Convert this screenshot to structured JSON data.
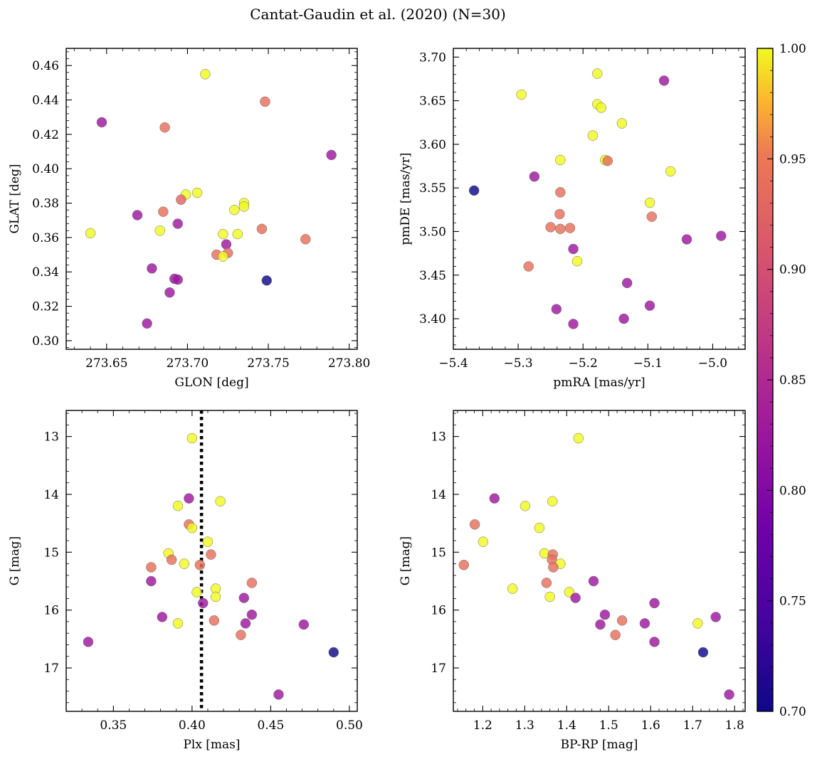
{
  "figure_title": "Cantat-Gaudin et al. (2020) (N=30)",
  "colorbar": {
    "min": 0.7,
    "max": 1.0,
    "ticks": [
      "0.70",
      "0.75",
      "0.80",
      "0.85",
      "0.90",
      "0.95",
      "1.00"
    ],
    "colormap": "plasma"
  },
  "chart_data": [
    {
      "type": "scatter",
      "xlabel": "GLON [deg]",
      "ylabel": "GLAT [deg]",
      "xlim": [
        273.625,
        273.805
      ],
      "ylim": [
        0.295,
        0.47
      ],
      "xticks": [
        "273.65",
        "273.70",
        "273.75",
        "273.80"
      ],
      "yticks": [
        "0.30",
        "0.32",
        "0.34",
        "0.36",
        "0.38",
        "0.40",
        "0.42",
        "0.44",
        "0.46"
      ],
      "points": [
        {
          "x": 273.711,
          "y": 0.455,
          "c": 1.0
        },
        {
          "x": 273.748,
          "y": 0.439,
          "c": 0.89
        },
        {
          "x": 273.647,
          "y": 0.427,
          "c": 0.8
        },
        {
          "x": 273.686,
          "y": 0.424,
          "c": 0.89
        },
        {
          "x": 273.789,
          "y": 0.408,
          "c": 0.8
        },
        {
          "x": 273.706,
          "y": 0.386,
          "c": 1.0
        },
        {
          "x": 273.699,
          "y": 0.385,
          "c": 1.0
        },
        {
          "x": 273.696,
          "y": 0.382,
          "c": 0.88
        },
        {
          "x": 273.735,
          "y": 0.38,
          "c": 1.0
        },
        {
          "x": 273.735,
          "y": 0.378,
          "c": 1.0
        },
        {
          "x": 273.729,
          "y": 0.376,
          "c": 1.0
        },
        {
          "x": 273.685,
          "y": 0.375,
          "c": 0.89
        },
        {
          "x": 273.669,
          "y": 0.373,
          "c": 0.8
        },
        {
          "x": 273.694,
          "y": 0.368,
          "c": 0.8
        },
        {
          "x": 273.746,
          "y": 0.365,
          "c": 0.89
        },
        {
          "x": 273.683,
          "y": 0.364,
          "c": 1.0
        },
        {
          "x": 273.64,
          "y": 0.3625,
          "c": 1.0
        },
        {
          "x": 273.722,
          "y": 0.362,
          "c": 1.0
        },
        {
          "x": 273.731,
          "y": 0.362,
          "c": 1.0
        },
        {
          "x": 273.773,
          "y": 0.359,
          "c": 0.89
        },
        {
          "x": 273.724,
          "y": 0.356,
          "c": 0.8
        },
        {
          "x": 273.725,
          "y": 0.351,
          "c": 0.89
        },
        {
          "x": 273.718,
          "y": 0.35,
          "c": 0.89
        },
        {
          "x": 273.722,
          "y": 0.349,
          "c": 1.0
        },
        {
          "x": 273.678,
          "y": 0.342,
          "c": 0.8
        },
        {
          "x": 273.692,
          "y": 0.336,
          "c": 0.8
        },
        {
          "x": 273.694,
          "y": 0.3355,
          "c": 0.8
        },
        {
          "x": 273.749,
          "y": 0.335,
          "c": 0.7
        },
        {
          "x": 273.689,
          "y": 0.328,
          "c": 0.8
        },
        {
          "x": 273.675,
          "y": 0.31,
          "c": 0.8
        }
      ]
    },
    {
      "type": "scatter",
      "xlabel": "pmRA [mas/yr]",
      "ylabel": "pmDE [mas/yr]",
      "xlim": [
        -5.4,
        -4.95
      ],
      "ylim": [
        3.365,
        3.71
      ],
      "xticks": [
        "−5.4",
        "−5.3",
        "−5.2",
        "−5.1",
        "−5.0"
      ],
      "yticks": [
        "3.40",
        "3.45",
        "3.50",
        "3.55",
        "3.60",
        "3.65",
        "3.70"
      ],
      "points": [
        {
          "x": -5.178,
          "y": 3.681,
          "c": 1.0
        },
        {
          "x": -5.075,
          "y": 3.673,
          "c": 0.8
        },
        {
          "x": -5.295,
          "y": 3.657,
          "c": 1.0
        },
        {
          "x": -5.178,
          "y": 3.646,
          "c": 1.0
        },
        {
          "x": -5.172,
          "y": 3.642,
          "c": 1.0
        },
        {
          "x": -5.14,
          "y": 3.624,
          "c": 1.0
        },
        {
          "x": -5.185,
          "y": 3.61,
          "c": 1.0
        },
        {
          "x": -5.235,
          "y": 3.582,
          "c": 1.0
        },
        {
          "x": -5.166,
          "y": 3.582,
          "c": 1.0
        },
        {
          "x": -5.162,
          "y": 3.581,
          "c": 0.89
        },
        {
          "x": -5.065,
          "y": 3.569,
          "c": 1.0
        },
        {
          "x": -5.275,
          "y": 3.563,
          "c": 0.8
        },
        {
          "x": -5.368,
          "y": 3.547,
          "c": 0.7
        },
        {
          "x": -5.235,
          "y": 3.545,
          "c": 0.89
        },
        {
          "x": -5.097,
          "y": 3.533,
          "c": 1.0
        },
        {
          "x": -5.236,
          "y": 3.52,
          "c": 0.89
        },
        {
          "x": -5.094,
          "y": 3.517,
          "c": 0.89
        },
        {
          "x": -5.25,
          "y": 3.505,
          "c": 0.89
        },
        {
          "x": -5.235,
          "y": 3.503,
          "c": 0.89
        },
        {
          "x": -5.22,
          "y": 3.504,
          "c": 0.89
        },
        {
          "x": -4.987,
          "y": 3.495,
          "c": 0.8
        },
        {
          "x": -5.04,
          "y": 3.491,
          "c": 0.8
        },
        {
          "x": -5.215,
          "y": 3.48,
          "c": 0.8
        },
        {
          "x": -5.209,
          "y": 3.466,
          "c": 1.0
        },
        {
          "x": -5.284,
          "y": 3.46,
          "c": 0.89
        },
        {
          "x": -5.132,
          "y": 3.441,
          "c": 0.8
        },
        {
          "x": -5.097,
          "y": 3.415,
          "c": 0.8
        },
        {
          "x": -5.241,
          "y": 3.411,
          "c": 0.8
        },
        {
          "x": -5.137,
          "y": 3.4,
          "c": 0.8
        },
        {
          "x": -5.215,
          "y": 3.394,
          "c": 0.8
        }
      ]
    },
    {
      "type": "scatter",
      "xlabel": "Plx [mas]",
      "ylabel": "G [mag]",
      "xlim": [
        0.32,
        0.505
      ],
      "ylim": [
        17.75,
        12.55
      ],
      "yinverted": true,
      "xticks": [
        "0.35",
        "0.40",
        "0.45",
        "0.50"
      ],
      "yticks": [
        "13",
        "14",
        "15",
        "16",
        "17"
      ],
      "vline": {
        "x": 0.406,
        "style": "dotted",
        "color": "#000000"
      },
      "points": [
        {
          "x": 0.4,
          "y": 13.03,
          "c": 1.0
        },
        {
          "x": 0.398,
          "y": 14.07,
          "c": 0.8
        },
        {
          "x": 0.418,
          "y": 14.12,
          "c": 1.0
        },
        {
          "x": 0.391,
          "y": 14.2,
          "c": 1.0
        },
        {
          "x": 0.398,
          "y": 14.52,
          "c": 0.89
        },
        {
          "x": 0.4,
          "y": 14.58,
          "c": 1.0
        },
        {
          "x": 0.41,
          "y": 14.82,
          "c": 1.0
        },
        {
          "x": 0.385,
          "y": 15.02,
          "c": 1.0
        },
        {
          "x": 0.412,
          "y": 15.04,
          "c": 0.89
        },
        {
          "x": 0.387,
          "y": 15.13,
          "c": 0.89
        },
        {
          "x": 0.395,
          "y": 15.2,
          "c": 1.0
        },
        {
          "x": 0.405,
          "y": 15.22,
          "c": 0.89
        },
        {
          "x": 0.374,
          "y": 15.26,
          "c": 0.89
        },
        {
          "x": 0.374,
          "y": 15.5,
          "c": 0.8
        },
        {
          "x": 0.438,
          "y": 15.53,
          "c": 0.89
        },
        {
          "x": 0.415,
          "y": 15.63,
          "c": 1.0
        },
        {
          "x": 0.403,
          "y": 15.69,
          "c": 1.0
        },
        {
          "x": 0.415,
          "y": 15.77,
          "c": 1.0
        },
        {
          "x": 0.433,
          "y": 15.79,
          "c": 0.8
        },
        {
          "x": 0.407,
          "y": 15.88,
          "c": 0.8
        },
        {
          "x": 0.438,
          "y": 16.08,
          "c": 0.8
        },
        {
          "x": 0.381,
          "y": 16.12,
          "c": 0.8
        },
        {
          "x": 0.414,
          "y": 16.18,
          "c": 0.89
        },
        {
          "x": 0.391,
          "y": 16.23,
          "c": 1.0
        },
        {
          "x": 0.434,
          "y": 16.23,
          "c": 0.8
        },
        {
          "x": 0.471,
          "y": 16.25,
          "c": 0.8
        },
        {
          "x": 0.431,
          "y": 16.43,
          "c": 0.89
        },
        {
          "x": 0.334,
          "y": 16.55,
          "c": 0.8
        },
        {
          "x": 0.49,
          "y": 16.73,
          "c": 0.7
        },
        {
          "x": 0.455,
          "y": 17.46,
          "c": 0.8
        }
      ]
    },
    {
      "type": "scatter",
      "xlabel": "BP-RP [mag]",
      "ylabel": "G [mag]",
      "xlim": [
        1.13,
        1.825
      ],
      "ylim": [
        17.75,
        12.55
      ],
      "yinverted": true,
      "xticks": [
        "1.2",
        "1.3",
        "1.4",
        "1.5",
        "1.6",
        "1.7",
        "1.8"
      ],
      "yticks": [
        "13",
        "14",
        "15",
        "16",
        "17"
      ],
      "points": [
        {
          "x": 1.428,
          "y": 13.03,
          "c": 1.0
        },
        {
          "x": 1.228,
          "y": 14.07,
          "c": 0.8
        },
        {
          "x": 1.366,
          "y": 14.12,
          "c": 1.0
        },
        {
          "x": 1.301,
          "y": 14.2,
          "c": 1.0
        },
        {
          "x": 1.181,
          "y": 14.52,
          "c": 0.89
        },
        {
          "x": 1.335,
          "y": 14.58,
          "c": 1.0
        },
        {
          "x": 1.201,
          "y": 14.82,
          "c": 1.0
        },
        {
          "x": 1.347,
          "y": 15.02,
          "c": 1.0
        },
        {
          "x": 1.367,
          "y": 15.04,
          "c": 0.89
        },
        {
          "x": 1.365,
          "y": 15.13,
          "c": 0.89
        },
        {
          "x": 1.385,
          "y": 15.2,
          "c": 1.0
        },
        {
          "x": 1.155,
          "y": 15.22,
          "c": 0.89
        },
        {
          "x": 1.368,
          "y": 15.26,
          "c": 0.89
        },
        {
          "x": 1.464,
          "y": 15.5,
          "c": 0.8
        },
        {
          "x": 1.352,
          "y": 15.53,
          "c": 0.89
        },
        {
          "x": 1.271,
          "y": 15.63,
          "c": 1.0
        },
        {
          "x": 1.406,
          "y": 15.69,
          "c": 1.0
        },
        {
          "x": 1.36,
          "y": 15.77,
          "c": 1.0
        },
        {
          "x": 1.421,
          "y": 15.79,
          "c": 0.8
        },
        {
          "x": 1.609,
          "y": 15.88,
          "c": 0.8
        },
        {
          "x": 1.491,
          "y": 16.08,
          "c": 0.8
        },
        {
          "x": 1.755,
          "y": 16.12,
          "c": 0.8
        },
        {
          "x": 1.532,
          "y": 16.18,
          "c": 0.89
        },
        {
          "x": 1.586,
          "y": 16.23,
          "c": 0.8
        },
        {
          "x": 1.712,
          "y": 16.23,
          "c": 1.0
        },
        {
          "x": 1.48,
          "y": 16.25,
          "c": 0.8
        },
        {
          "x": 1.516,
          "y": 16.43,
          "c": 0.89
        },
        {
          "x": 1.609,
          "y": 16.55,
          "c": 0.8
        },
        {
          "x": 1.725,
          "y": 16.73,
          "c": 0.7
        },
        {
          "x": 1.787,
          "y": 17.46,
          "c": 0.8
        }
      ]
    }
  ]
}
